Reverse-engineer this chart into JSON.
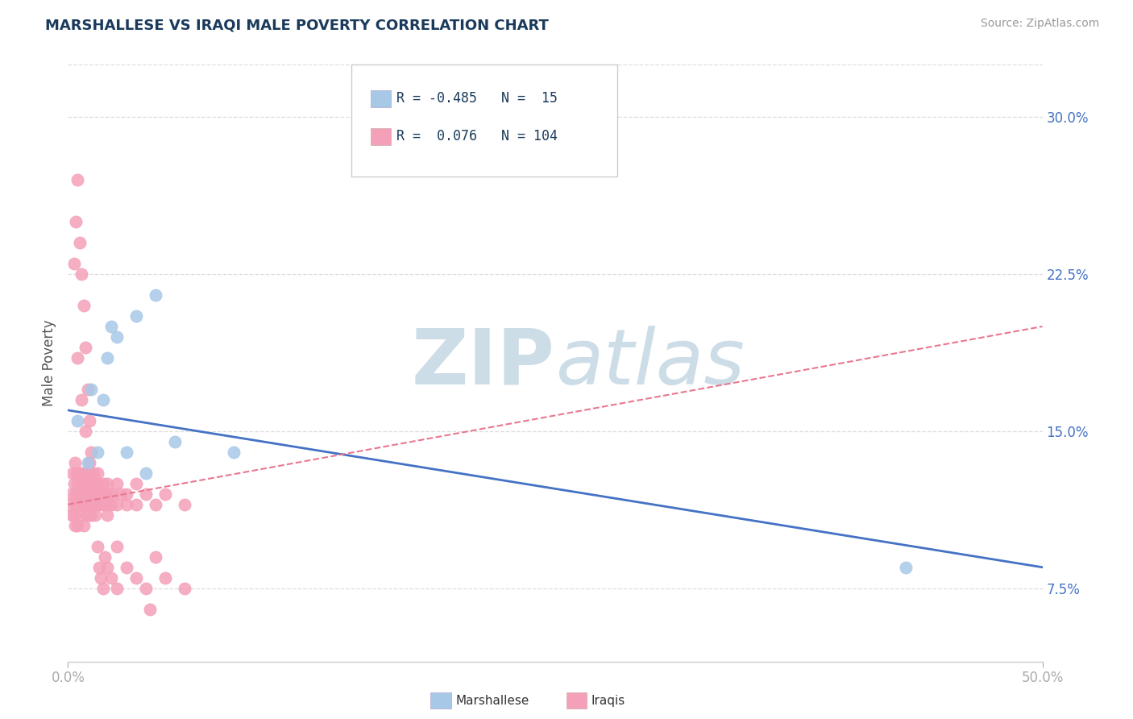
{
  "title": "MARSHALLESE VS IRAQI MALE POVERTY CORRELATION CHART",
  "source": "Source: ZipAtlas.com",
  "ylabel": "Male Poverty",
  "ylabel_right_ticks": [
    7.5,
    15.0,
    22.5,
    30.0
  ],
  "ylabel_right_labels": [
    "7.5%",
    "15.0%",
    "22.5%",
    "30.0%"
  ],
  "xlim": [
    0.0,
    50.0
  ],
  "ylim": [
    4.0,
    32.5
  ],
  "legend": {
    "r_marshallese": -0.485,
    "n_marshallese": 15,
    "r_iraqis": 0.076,
    "n_iraqis": 104
  },
  "marshallese_color": "#a8c8e8",
  "iraqis_color": "#f4a0b8",
  "trend_marshallese_color": "#4472c4",
  "trend_iraqis_color": "#e87890",
  "background_color": "#ffffff",
  "title_color": "#1a3a5c",
  "axis_color": "#4472c4",
  "watermark_color": "#ccdde8",
  "grid_color": "#dddddd",
  "marshallese_x": [
    0.5,
    1.0,
    1.5,
    2.0,
    2.5,
    3.5,
    4.5,
    5.5,
    8.5,
    43.0,
    1.2,
    1.8,
    2.2,
    3.0,
    4.0
  ],
  "marshallese_y": [
    15.5,
    13.5,
    14.0,
    18.5,
    19.5,
    20.5,
    21.5,
    14.5,
    14.0,
    8.5,
    17.0,
    16.5,
    20.0,
    14.0,
    13.0
  ],
  "iraqis_x": [
    0.1,
    0.15,
    0.2,
    0.25,
    0.3,
    0.3,
    0.35,
    0.35,
    0.4,
    0.4,
    0.45,
    0.5,
    0.5,
    0.5,
    0.55,
    0.6,
    0.6,
    0.6,
    0.65,
    0.7,
    0.7,
    0.7,
    0.75,
    0.8,
    0.8,
    0.8,
    0.85,
    0.9,
    0.9,
    0.9,
    0.95,
    1.0,
    1.0,
    1.0,
    1.0,
    1.05,
    1.1,
    1.1,
    1.15,
    1.2,
    1.2,
    1.25,
    1.3,
    1.3,
    1.35,
    1.4,
    1.5,
    1.5,
    1.5,
    1.6,
    1.6,
    1.7,
    1.8,
    1.8,
    1.9,
    2.0,
    2.0,
    2.0,
    2.1,
    2.2,
    2.3,
    2.5,
    2.5,
    2.7,
    3.0,
    3.0,
    3.5,
    3.5,
    4.0,
    4.5,
    5.0,
    6.0,
    0.4,
    0.5,
    0.6,
    0.7,
    0.8,
    0.9,
    1.0,
    1.1,
    1.2,
    1.3,
    1.4,
    1.5,
    1.6,
    1.7,
    1.8,
    1.9,
    2.0,
    2.2,
    2.5,
    3.0,
    3.5,
    4.0,
    5.0,
    6.0,
    0.3,
    0.5,
    0.7,
    0.9,
    1.1,
    2.5,
    4.5,
    4.2
  ],
  "iraqis_y": [
    11.5,
    12.0,
    11.0,
    13.0,
    12.5,
    11.0,
    10.5,
    13.5,
    11.5,
    12.0,
    13.0,
    12.5,
    11.5,
    10.5,
    12.0,
    11.5,
    13.0,
    12.0,
    11.0,
    12.5,
    13.0,
    11.5,
    12.0,
    11.5,
    12.5,
    10.5,
    12.0,
    11.5,
    13.0,
    12.0,
    11.0,
    12.5,
    11.5,
    13.0,
    12.0,
    11.0,
    12.5,
    13.0,
    11.5,
    12.5,
    11.0,
    12.0,
    11.5,
    13.0,
    12.0,
    12.5,
    11.5,
    12.5,
    13.0,
    12.0,
    11.5,
    12.0,
    11.5,
    12.5,
    12.0,
    11.5,
    12.5,
    11.0,
    12.0,
    11.5,
    12.0,
    11.5,
    12.5,
    12.0,
    11.5,
    12.0,
    11.5,
    12.5,
    12.0,
    11.5,
    12.0,
    11.5,
    25.0,
    27.0,
    24.0,
    22.5,
    21.0,
    19.0,
    17.0,
    15.5,
    14.0,
    12.5,
    11.0,
    9.5,
    8.5,
    8.0,
    7.5,
    9.0,
    8.5,
    8.0,
    7.5,
    8.5,
    8.0,
    7.5,
    8.0,
    7.5,
    23.0,
    18.5,
    16.5,
    15.0,
    13.5,
    9.5,
    9.0,
    6.5
  ]
}
